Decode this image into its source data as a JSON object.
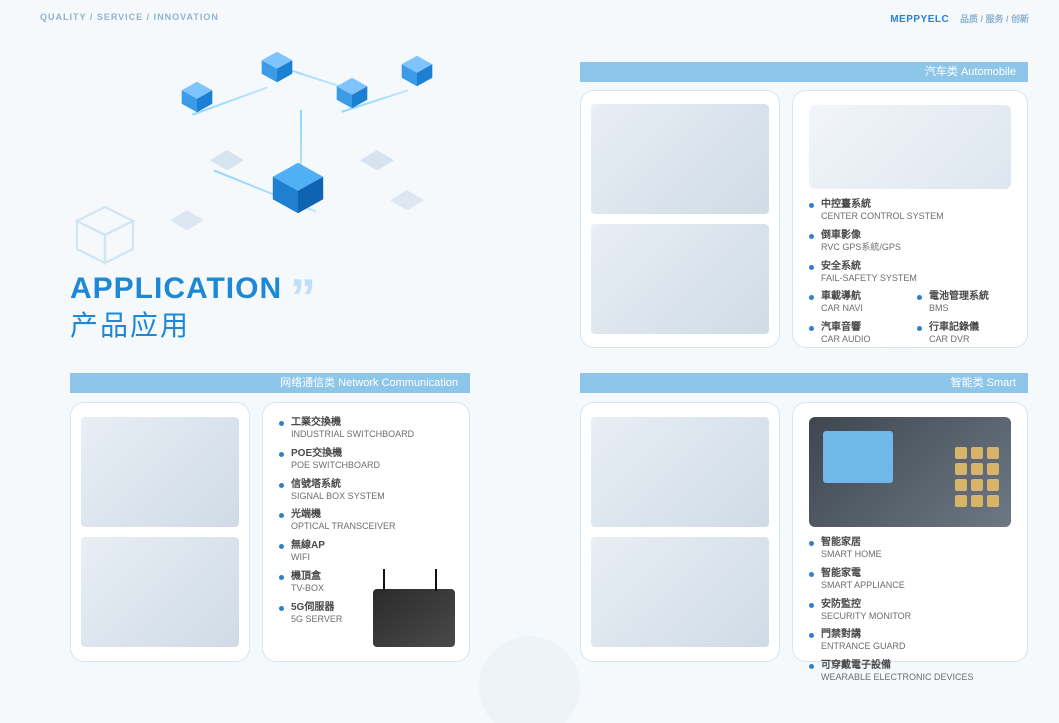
{
  "colors": {
    "primary": "#1d89d6",
    "barFill": "#8ec6ea",
    "accentLight": "#bfe0f8",
    "border": "#d9e4ee",
    "bg": "#f5f9fc",
    "textDark": "#4a4a4a",
    "textMuted": "#6d6d6d",
    "headerMuted": "#8fb3d1"
  },
  "header": {
    "left": "QUALITY / SERVICE / INNOVATION",
    "brand": "MEPPYELC",
    "tag": "品质 / 服务 / 创新"
  },
  "title": {
    "en": "APPLICATION",
    "cn": "产品应用",
    "quotes": "”"
  },
  "sections": {
    "network": {
      "bar": "网络通信类  Network Communication",
      "items": [
        {
          "cn": "工業交換機",
          "en": "INDUSTRIAL SWITCHBOARD"
        },
        {
          "cn": "POE交換機",
          "en": "POE SWITCHBOARD"
        },
        {
          "cn": "信號塔系統",
          "en": "SIGNAL BOX SYSTEM"
        },
        {
          "cn": "光端機",
          "en": "OPTICAL TRANSCEIVER"
        },
        {
          "cn": "無線AP",
          "en": "WIFI"
        },
        {
          "cn": "機頂盒",
          "en": "TV-BOX"
        },
        {
          "cn": "5G伺服器",
          "en": "5G SERVER"
        }
      ]
    },
    "automobile": {
      "bar": "汽车类  Automobile",
      "primary": [
        {
          "cn": "中控臺系統",
          "en": "CENTER CONTROL SYSTEM"
        },
        {
          "cn": "倒車影像",
          "en": "RVC GPS系統/GPS"
        },
        {
          "cn": "安全系統",
          "en": "FAIL-SAFETY SYSTEM"
        }
      ],
      "pairs": [
        {
          "cn": "車載導航",
          "en": "CAR NAVI"
        },
        {
          "cn": "汽車音響",
          "en": "CAR AUDIO"
        },
        {
          "cn": "電池管理系統",
          "en": "BMS"
        },
        {
          "cn": "行車記錄儀",
          "en": "CAR DVR"
        }
      ]
    },
    "smart": {
      "bar": "智能类  Smart",
      "items": [
        {
          "cn": "智能家居",
          "en": "SMART HOME"
        },
        {
          "cn": "智能家電",
          "en": "SMART APPLIANCE"
        },
        {
          "cn": "安防監控",
          "en": "SECURITY MONITOR"
        },
        {
          "cn": "門禁對講",
          "en": "ENTRANCE GUARD"
        },
        {
          "cn": "可穿戴電子設備",
          "en": "WEARABLE ELECTRONIC DEVICES"
        }
      ]
    }
  }
}
